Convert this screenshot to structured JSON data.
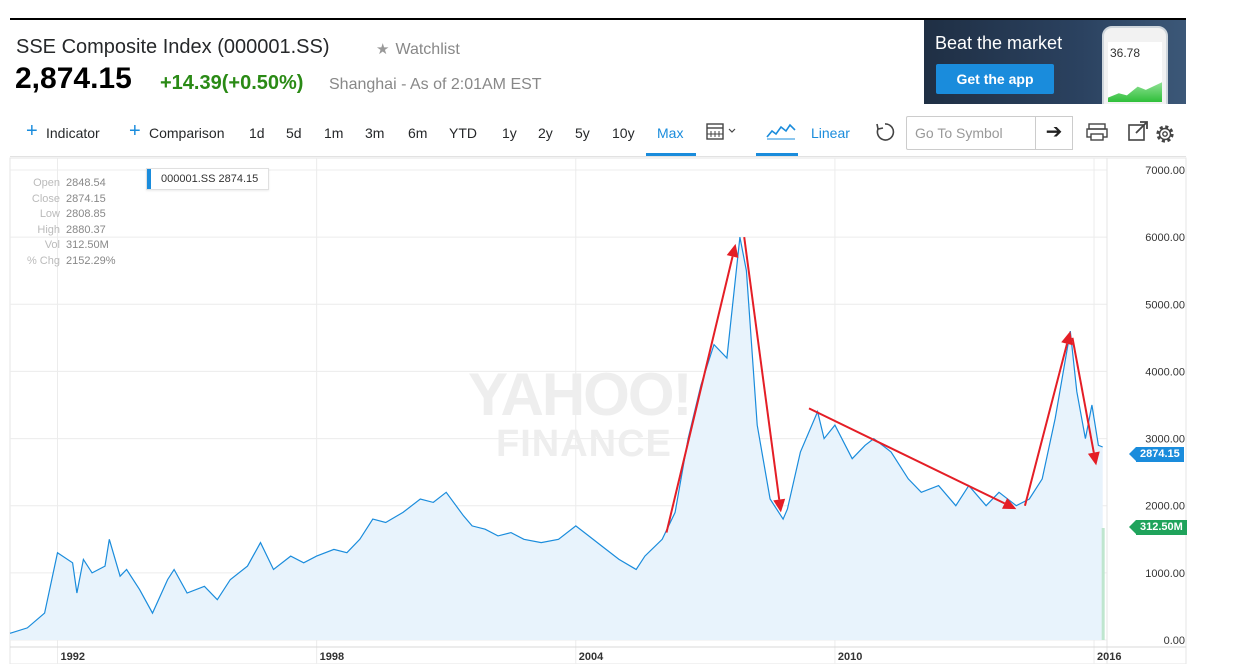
{
  "header": {
    "name": "SSE Composite Index (000001.SS)",
    "watchlist_label": "Watchlist",
    "price": "2,874.15",
    "change": "+14.39(+0.50%)",
    "market_time": "Shanghai - As of 2:01AM EST"
  },
  "ad": {
    "headline": "Beat the market",
    "button": "Get the app",
    "phone_value": "36.78"
  },
  "toolbar": {
    "indicator": "Indicator",
    "comparison": "Comparison",
    "ranges": [
      "1d",
      "5d",
      "1m",
      "3m",
      "6m",
      "YTD",
      "1y",
      "2y",
      "5y",
      "10y",
      "Max"
    ],
    "active_range": "Max",
    "scale": "Linear",
    "search_placeholder": "Go To Symbol",
    "icons": [
      "plus-icon",
      "calendar-icon",
      "chevron-down-icon",
      "mountain-chart-icon",
      "reset-icon",
      "arrow-right-icon",
      "print-icon",
      "popout-icon",
      "gear-icon"
    ]
  },
  "ohlc": [
    {
      "key": "Open",
      "value": "2848.54"
    },
    {
      "key": "Close",
      "value": "2874.15"
    },
    {
      "key": "Low",
      "value": "2808.85"
    },
    {
      "key": "High",
      "value": "2880.37"
    },
    {
      "key": "Vol",
      "value": "312.50M"
    },
    {
      "key": "% Chg",
      "value": "2152.29%"
    }
  ],
  "legend_tag": "000001.SS 2874.15",
  "watermark": {
    "line1": "YAHOO!",
    "line2": "FINANCE"
  },
  "badges": {
    "price": "2874.15",
    "volume": "312.50M"
  },
  "colors": {
    "line": "#1a8cdc",
    "fill": "#e8f3fc",
    "arrows": "#e41e26",
    "positive": "#2a8a15",
    "volume": "#1fa35b"
  },
  "chart_data": {
    "type": "area",
    "series": [
      {
        "name": "000001.SS",
        "x": [
          1990.9,
          1991.3,
          1991.7,
          1992.0,
          1992.35,
          1992.45,
          1992.6,
          1992.8,
          1993.1,
          1993.2,
          1993.45,
          1993.6,
          1993.9,
          1994.2,
          1994.55,
          1994.7,
          1995.0,
          1995.4,
          1995.7,
          1996.0,
          1996.4,
          1996.7,
          1997.0,
          1997.4,
          1997.7,
          1998.0,
          1998.4,
          1998.7,
          1999.0,
          1999.3,
          1999.6,
          2000.0,
          2000.4,
          2000.7,
          2001.0,
          2001.4,
          2001.6,
          2001.9,
          2002.2,
          2002.5,
          2002.8,
          2003.2,
          2003.6,
          2004.0,
          2004.3,
          2004.6,
          2005.0,
          2005.4,
          2005.6,
          2006.0,
          2006.3,
          2006.6,
          2006.9,
          2007.2,
          2007.5,
          2007.8,
          2007.95,
          2008.2,
          2008.5,
          2008.8,
          2008.9,
          2009.2,
          2009.6,
          2009.75,
          2010.0,
          2010.4,
          2010.7,
          2010.9,
          2011.3,
          2011.7,
          2012.0,
          2012.4,
          2012.8,
          2013.1,
          2013.5,
          2013.8,
          2014.2,
          2014.5,
          2014.8,
          2015.1,
          2015.45,
          2015.6,
          2015.8,
          2015.95,
          2016.1,
          2016.2
        ],
        "values": [
          100,
          180,
          400,
          1300,
          1150,
          700,
          1200,
          1000,
          1100,
          1500,
          950,
          1050,
          750,
          400,
          900,
          1050,
          700,
          800,
          600,
          900,
          1100,
          1450,
          1050,
          1250,
          1150,
          1250,
          1350,
          1300,
          1500,
          1800,
          1750,
          1900,
          2100,
          2050,
          2200,
          1850,
          1700,
          1650,
          1550,
          1600,
          1500,
          1450,
          1500,
          1700,
          1550,
          1400,
          1200,
          1050,
          1250,
          1500,
          1900,
          3000,
          3800,
          4400,
          4200,
          6000,
          5500,
          3200,
          2100,
          1800,
          1950,
          2800,
          3400,
          3000,
          3200,
          2700,
          2900,
          3000,
          2800,
          2400,
          2200,
          2300,
          2000,
          2300,
          2000,
          2200,
          2000,
          2100,
          2400,
          3300,
          4600,
          3700,
          3000,
          3500,
          2900,
          2874
        ]
      }
    ],
    "volume_last": 312.5,
    "xlabel": "",
    "ylabel": "",
    "xlim": [
      1990.9,
      2016.3
    ],
    "ylim": [
      0,
      7000
    ],
    "x_ticks": [
      1992,
      1998,
      2004,
      2010,
      2016
    ],
    "y_ticks": [
      "0.00",
      "1000.00",
      "2000.00",
      "3000.00",
      "4000.00",
      "5000.00",
      "6000.00",
      "7000.00"
    ],
    "grid": true,
    "annotations": [
      {
        "type": "arrow",
        "from": [
          2006.1,
          1600
        ],
        "to": [
          2007.7,
          5900
        ]
      },
      {
        "type": "arrow",
        "from": [
          2007.9,
          6000
        ],
        "to": [
          2008.75,
          1900
        ]
      },
      {
        "type": "arrow",
        "from": [
          2009.4,
          3450
        ],
        "to": [
          2014.2,
          1950
        ]
      },
      {
        "type": "arrow",
        "from": [
          2014.4,
          2000
        ],
        "to": [
          2015.45,
          4600
        ]
      },
      {
        "type": "arrow",
        "from": [
          2015.5,
          4500
        ],
        "to": [
          2016.05,
          2600
        ]
      }
    ]
  }
}
